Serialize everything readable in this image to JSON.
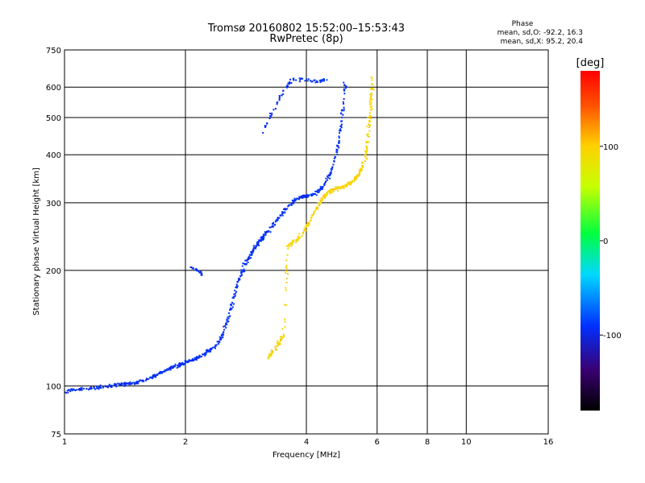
{
  "chart_data": {
    "type": "scatter",
    "title": "Tromsø 20160802 15:52:00–15:53:43",
    "subtitle": "RwPretec (8p)",
    "xlabel": "Frequency [MHz]",
    "ylabel": "Stationary phase Virtual Height [km]",
    "x_scale": "log",
    "y_scale": "log",
    "xlim": [
      1,
      16
    ],
    "ylim": [
      75,
      750
    ],
    "x_ticks": [
      1,
      2,
      4,
      6,
      8,
      10,
      16
    ],
    "x_tick_labels": [
      "1",
      "2",
      "4",
      "6",
      "8",
      "10",
      "16"
    ],
    "y_ticks": [
      75,
      100,
      200,
      300,
      400,
      500,
      600,
      750
    ],
    "y_tick_labels": [
      "75",
      "100",
      "200",
      "300",
      "400",
      "500",
      "600",
      "750"
    ],
    "grid": true,
    "phase_stats": {
      "heading": "Phase",
      "o_line": "mean, sd,O: -92.2, 16.3",
      "x_line": "mean, sd,X:  95.2, 20.4"
    },
    "colorbar": {
      "label": "[deg]",
      "range": [
        -180,
        180
      ],
      "ticks": [
        100,
        0,
        -100
      ],
      "tick_labels": [
        "100",
        "0",
        "-100"
      ]
    },
    "point_color_scale": "phase in degrees, rainbow from -180 (black) through blue, cyan, green, yellow to red (+180)",
    "series": [
      {
        "name": "O-mode",
        "mean_phase": -92.2,
        "trace": [
          [
            1.0,
            97
          ],
          [
            1.1,
            98
          ],
          [
            1.2,
            99
          ],
          [
            1.3,
            100
          ],
          [
            1.4,
            101
          ],
          [
            1.5,
            102
          ],
          [
            1.6,
            104
          ],
          [
            1.7,
            107
          ],
          [
            1.8,
            110
          ],
          [
            1.9,
            113
          ],
          [
            2.0,
            115
          ],
          [
            2.1,
            117
          ],
          [
            2.2,
            120
          ],
          [
            2.3,
            124
          ],
          [
            2.4,
            128
          ],
          [
            2.5,
            140
          ],
          [
            2.6,
            160
          ],
          [
            2.7,
            185
          ],
          [
            2.8,
            205
          ],
          [
            2.9,
            220
          ],
          [
            3.0,
            232
          ],
          [
            3.1,
            242
          ],
          [
            3.2,
            252
          ],
          [
            3.4,
            272
          ],
          [
            3.6,
            292
          ],
          [
            3.8,
            308
          ],
          [
            4.0,
            312
          ],
          [
            4.2,
            317
          ],
          [
            4.4,
            330
          ],
          [
            4.6,
            360
          ],
          [
            4.8,
            420
          ],
          [
            4.9,
            500
          ],
          [
            5.0,
            610
          ]
        ],
        "upper_trace": [
          [
            3.1,
            455
          ],
          [
            3.3,
            520
          ],
          [
            3.5,
            580
          ],
          [
            3.7,
            630
          ],
          [
            4.0,
            625
          ],
          [
            4.3,
            620
          ],
          [
            4.5,
            630
          ]
        ],
        "side_branches": [
          [
            2.05,
            205
          ],
          [
            2.15,
            200
          ],
          [
            2.2,
            195
          ]
        ]
      },
      {
        "name": "X-mode",
        "mean_phase": 95.2,
        "trace": [
          [
            3.2,
            118
          ],
          [
            3.35,
            125
          ],
          [
            3.5,
            135
          ],
          [
            3.6,
            232
          ],
          [
            3.8,
            240
          ],
          [
            4.0,
            258
          ],
          [
            4.2,
            285
          ],
          [
            4.4,
            310
          ],
          [
            4.6,
            322
          ],
          [
            4.8,
            328
          ],
          [
            5.0,
            332
          ],
          [
            5.2,
            340
          ],
          [
            5.4,
            355
          ],
          [
            5.6,
            390
          ],
          [
            5.7,
            450
          ],
          [
            5.8,
            540
          ],
          [
            5.85,
            640
          ]
        ]
      }
    ]
  }
}
